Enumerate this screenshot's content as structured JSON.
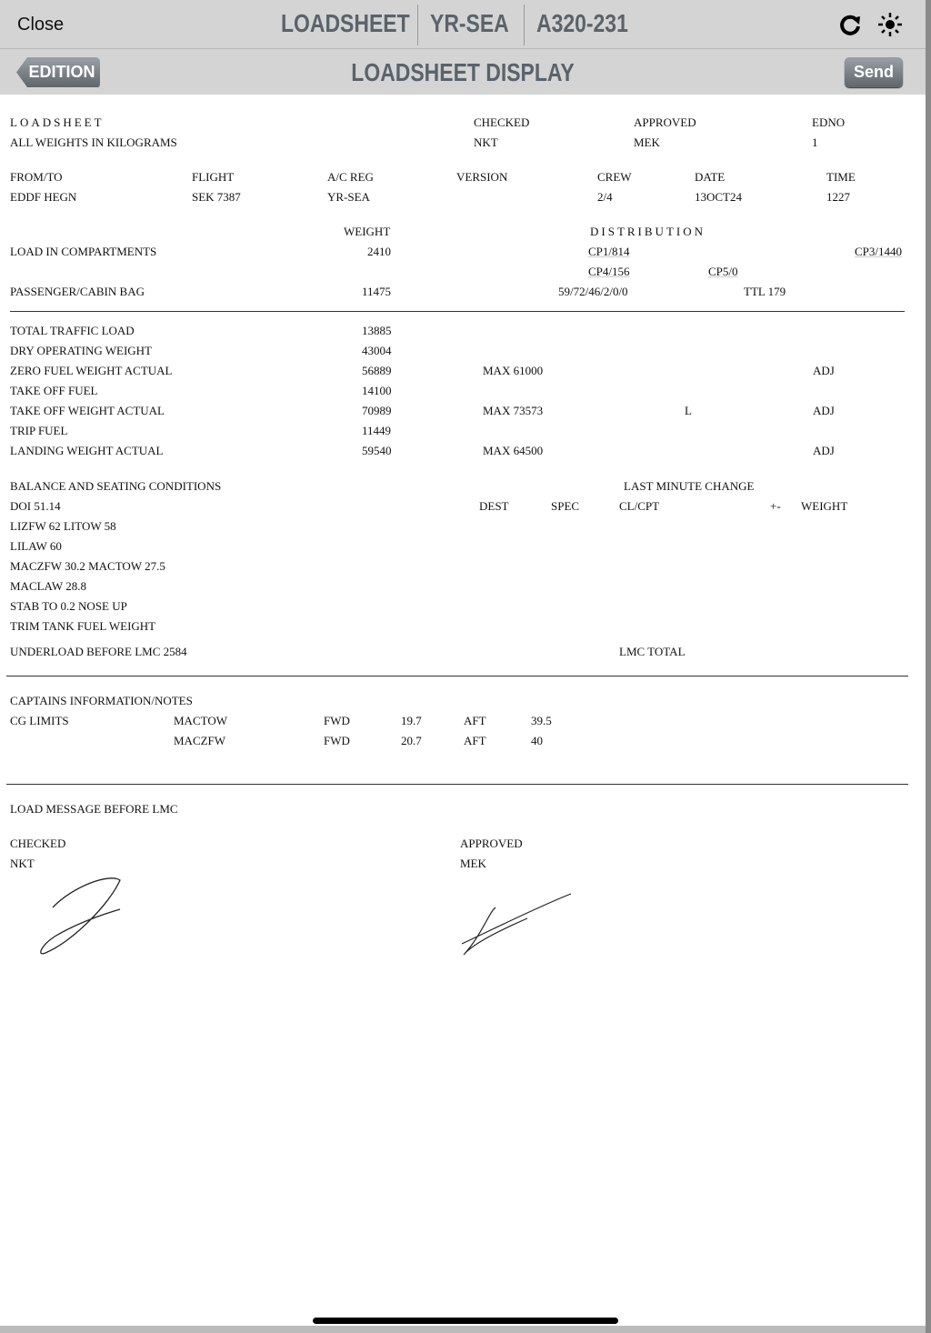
{
  "header": {
    "close": "Close",
    "titles": [
      "LOADSHEET",
      "YR-SEA",
      "A320-231"
    ],
    "icons": [
      "refresh-icon",
      "brightness-icon"
    ],
    "subtitle": "LOADSHEET DISPLAY",
    "edition": "EDITION",
    "send": "Send"
  },
  "doc": {
    "r1": [
      "LOADSHEET",
      "CHECKED",
      "APPROVED",
      "EDNO"
    ],
    "r2": [
      "ALL WEIGHTS IN KILOGRAMS",
      "NKT",
      "MEK",
      "1"
    ],
    "r3": [
      "FROM/TO",
      "FLIGHT",
      "A/C REG",
      "VERSION",
      "CREW",
      "DATE",
      "TIME"
    ],
    "r4": [
      "EDDF HEGN",
      "SEK 7387",
      "YR-SEA",
      "2/4",
      "13OCT24",
      "1227"
    ],
    "weight": "WEIGHT",
    "distribution": "DISTRIBUTION",
    "lic": "LOAD IN COMPARTMENTS",
    "lic_w": "2410",
    "cp1": "CP1/814",
    "cp3": "CP3/1440",
    "cp4": "CP4/156",
    "cp5": "CP5/0",
    "pax": "PASSENGER/CABIN BAG",
    "pax_w": "11475",
    "pax_d": "59/72/46/2/0/0",
    "ttl": "TTL 179",
    "rows": [
      [
        "TOTAL TRAFFIC LOAD",
        "13885",
        "",
        "",
        ""
      ],
      [
        "DRY OPERATING WEIGHT",
        "43004",
        "",
        "",
        ""
      ],
      [
        "ZERO FUEL WEIGHT ACTUAL",
        "56889",
        "MAX 61000",
        "",
        "ADJ"
      ],
      [
        "TAKE OFF FUEL",
        "14100",
        "",
        "",
        ""
      ],
      [
        "TAKE OFF WEIGHT ACTUAL",
        "70989",
        "MAX 73573",
        "L",
        "ADJ"
      ],
      [
        "TRIP FUEL",
        "11449",
        "",
        "",
        ""
      ],
      [
        "LANDING WEIGHT ACTUAL",
        "59540",
        "MAX 64500",
        "",
        "ADJ"
      ]
    ],
    "bal": [
      "BALANCE AND SEATING CONDITIONS",
      "DOI 51.14",
      "LIZFW 62 LITOW 58",
      "LILAW 60",
      "MACZFW 30.2 MACTOW 27.5",
      "MACLAW 28.8",
      "STAB TO 0.2 NOSE UP",
      "TRIM TANK FUEL WEIGHT"
    ],
    "lmc": "LAST MINUTE CHANGE",
    "lmc_cols": [
      "DEST",
      "SPEC",
      "CL/CPT",
      "+-",
      "WEIGHT"
    ],
    "underload": "UNDERLOAD BEFORE LMC 2584",
    "lmc_total": "LMC TOTAL",
    "cap": "CAPTAINS INFORMATION/NOTES",
    "cg": "CG LIMITS",
    "cg_rows": [
      [
        "MACTOW",
        "FWD",
        "19.7",
        "AFT",
        "39.5"
      ],
      [
        "MACZFW",
        "FWD",
        "20.7",
        "AFT",
        "40"
      ]
    ],
    "lmb": "LOAD MESSAGE BEFORE LMC",
    "checked": "CHECKED",
    "checked_by": "NKT",
    "approved": "APPROVED",
    "approved_by": "MEK"
  }
}
